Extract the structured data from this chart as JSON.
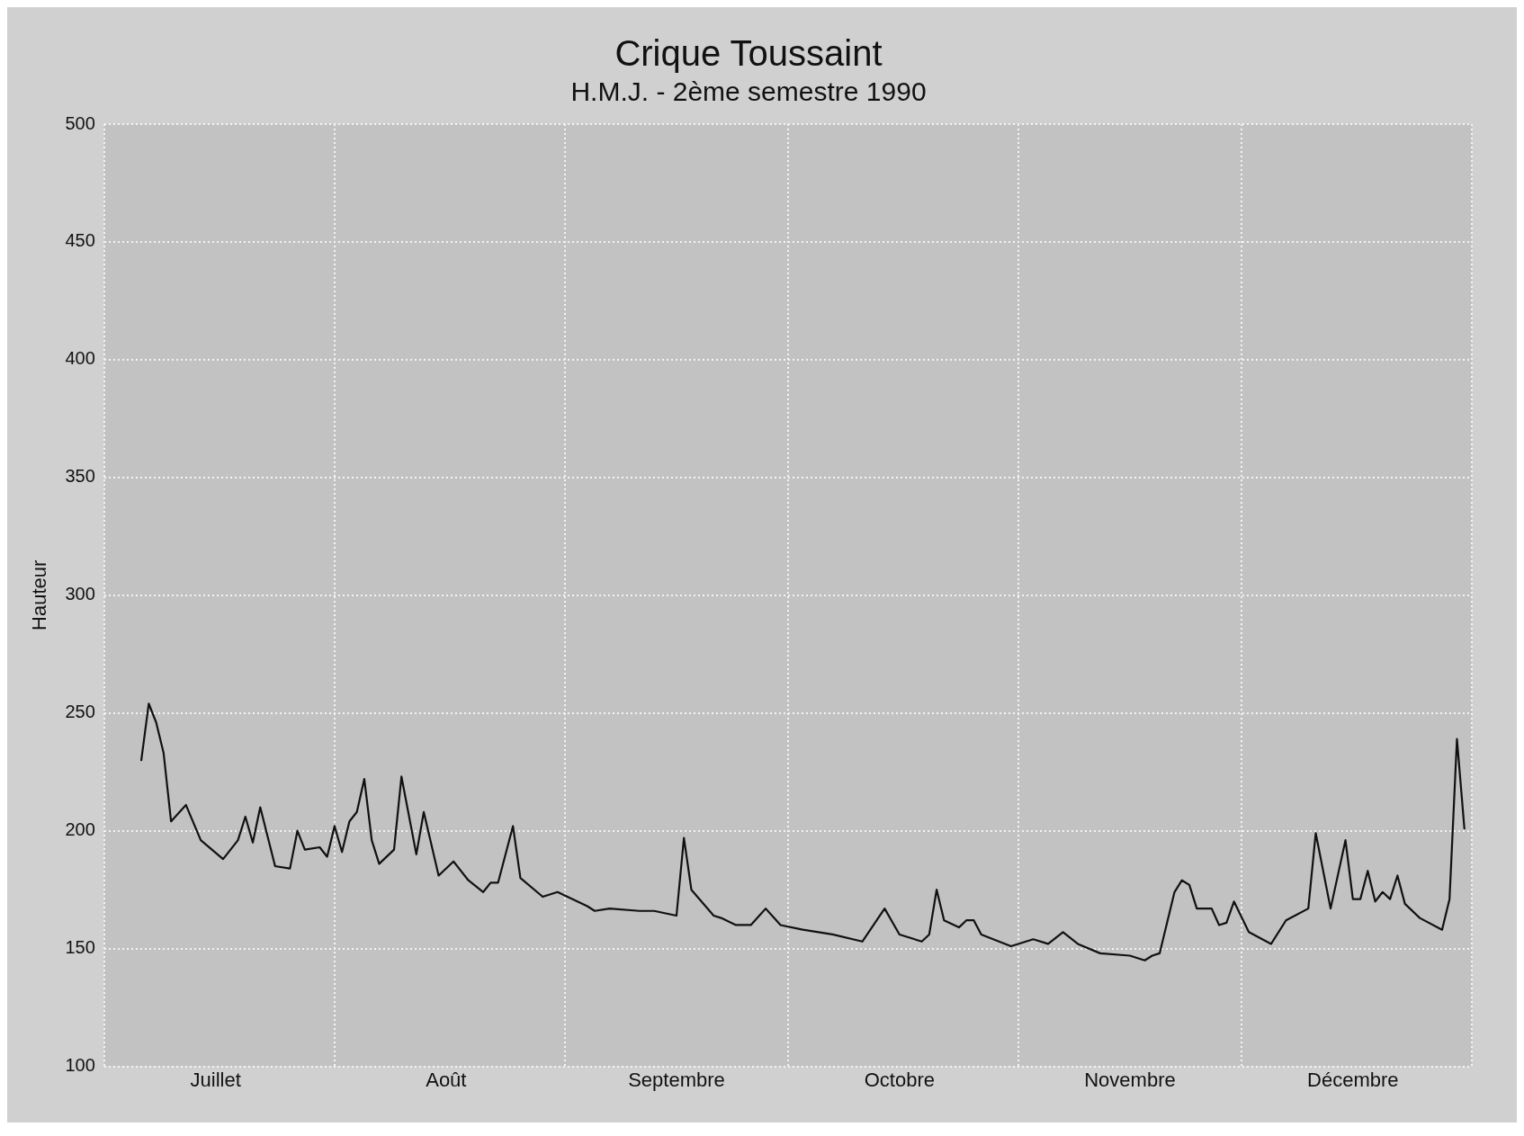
{
  "chart_data": {
    "type": "line",
    "title": "Crique Toussaint",
    "subtitle": "H.M.J. - 2ème semestre 1990",
    "ylabel": "Hauteur",
    "x": [
      "1990-07-06",
      "1990-07-07",
      "1990-07-08",
      "1990-07-09",
      "1990-07-10",
      "1990-07-12",
      "1990-07-14",
      "1990-07-17",
      "1990-07-19",
      "1990-07-20",
      "1990-07-21",
      "1990-07-22",
      "1990-07-24",
      "1990-07-26",
      "1990-07-27",
      "1990-07-28",
      "1990-07-30",
      "1990-07-31",
      "1990-08-01",
      "1990-08-02",
      "1990-08-03",
      "1990-08-04",
      "1990-08-05",
      "1990-08-06",
      "1990-08-07",
      "1990-08-09",
      "1990-08-10",
      "1990-08-12",
      "1990-08-13",
      "1990-08-15",
      "1990-08-17",
      "1990-08-19",
      "1990-08-21",
      "1990-08-22",
      "1990-08-23",
      "1990-08-25",
      "1990-08-26",
      "1990-08-29",
      "1990-08-31",
      "1990-09-04",
      "1990-09-05",
      "1990-09-07",
      "1990-09-11",
      "1990-09-13",
      "1990-09-16",
      "1990-09-17",
      "1990-09-18",
      "1990-09-21",
      "1990-09-22",
      "1990-09-24",
      "1990-09-26",
      "1990-09-28",
      "1990-09-30",
      "1990-10-03",
      "1990-10-07",
      "1990-10-11",
      "1990-10-14",
      "1990-10-16",
      "1990-10-19",
      "1990-10-20",
      "1990-10-21",
      "1990-10-22",
      "1990-10-24",
      "1990-10-25",
      "1990-10-26",
      "1990-10-27",
      "1990-10-31",
      "1990-11-03",
      "1990-11-05",
      "1990-11-07",
      "1990-11-09",
      "1990-11-12",
      "1990-11-16",
      "1990-11-18",
      "1990-11-19",
      "1990-11-20",
      "1990-11-22",
      "1990-11-23",
      "1990-11-24",
      "1990-11-25",
      "1990-11-27",
      "1990-11-28",
      "1990-11-29",
      "1990-11-30",
      "1990-12-02",
      "1990-12-05",
      "1990-12-07",
      "1990-12-10",
      "1990-12-11",
      "1990-12-13",
      "1990-12-15",
      "1990-12-16",
      "1990-12-17",
      "1990-12-18",
      "1990-12-19",
      "1990-12-20",
      "1990-12-21",
      "1990-12-22",
      "1990-12-23",
      "1990-12-25",
      "1990-12-28",
      "1990-12-29",
      "1990-12-30",
      "1990-12-31"
    ],
    "series": [
      {
        "color": "#111111",
        "values": [
          230,
          254,
          246,
          233,
          204,
          211,
          196,
          188,
          196,
          206,
          195,
          210,
          185,
          184,
          200,
          192,
          193,
          189,
          202,
          191,
          204,
          208,
          222,
          196,
          186,
          192,
          223,
          190,
          208,
          181,
          187,
          179,
          174,
          178,
          178,
          202,
          180,
          172,
          174,
          168,
          166,
          167,
          166,
          166,
          164,
          197,
          175,
          164,
          163,
          160,
          160,
          167,
          160,
          158,
          156,
          153,
          167,
          156,
          153,
          156,
          175,
          162,
          159,
          162,
          162,
          156,
          151,
          154,
          152,
          157,
          152,
          148,
          147,
          145,
          147,
          148,
          174,
          179,
          177,
          167,
          167,
          160,
          161,
          170,
          157,
          152,
          162,
          167,
          199,
          167,
          196,
          171,
          171,
          183,
          170,
          174,
          171,
          181,
          169,
          163,
          158,
          171,
          239,
          201
        ]
      }
    ],
    "xlim": [
      "1990-07-01",
      "1991-01-01"
    ],
    "xticks": [
      {
        "value": "1990-07-01",
        "label": null
      },
      {
        "value": "1990-07-16",
        "label": "Juillet"
      },
      {
        "value": "1990-08-01",
        "label": null
      },
      {
        "value": "1990-08-16",
        "label": "Août"
      },
      {
        "value": "1990-09-01",
        "label": null
      },
      {
        "value": "1990-09-16",
        "label": "Septembre"
      },
      {
        "value": "1990-10-01",
        "label": null
      },
      {
        "value": "1990-10-16",
        "label": "Octobre"
      },
      {
        "value": "1990-11-01",
        "label": null
      },
      {
        "value": "1990-11-16",
        "label": "Novembre"
      },
      {
        "value": "1990-12-01",
        "label": null
      },
      {
        "value": "1990-12-16",
        "label": "Décembre"
      },
      {
        "value": "1991-01-01",
        "label": null
      }
    ],
    "ylim": [
      100,
      500
    ],
    "yticks": [
      100,
      150,
      200,
      250,
      300,
      350,
      400,
      450,
      500
    ],
    "grid": true,
    "legend": false,
    "marker": "none",
    "line_style": "solid"
  }
}
